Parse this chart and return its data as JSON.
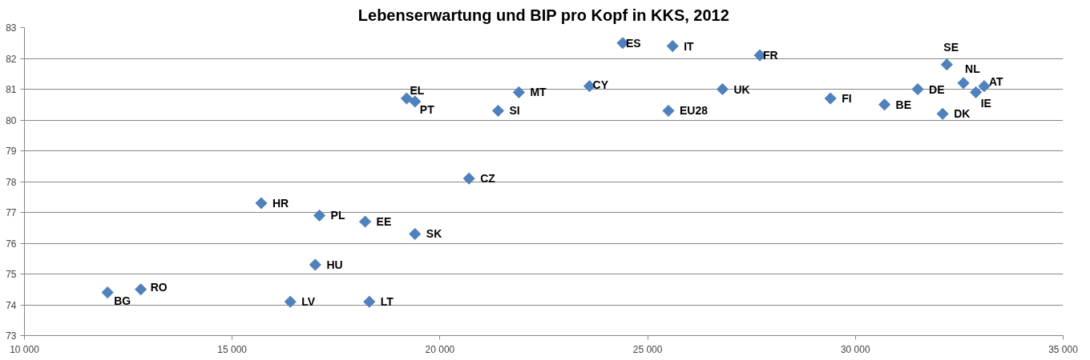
{
  "chart_data": {
    "type": "scatter",
    "title": "Lebenserwartung und BIP pro Kopf in KKS, 2012",
    "x": [
      12000,
      12800,
      15700,
      17100,
      18200,
      19400,
      17000,
      16400,
      18300,
      20700,
      19200,
      19400,
      21400,
      21900,
      24400,
      25600,
      27700,
      23600,
      26800,
      25500,
      29400,
      30700,
      31500,
      32200,
      32600,
      33100,
      32900,
      32100
    ],
    "series": [
      {
        "color": "#4f81bd",
        "values": [
          74.4,
          74.5,
          77.3,
          76.9,
          76.7,
          76.3,
          75.3,
          74.1,
          74.1,
          78.1,
          80.7,
          80.6,
          80.3,
          80.9,
          82.5,
          82.4,
          82.1,
          81.1,
          81.0,
          80.3,
          80.7,
          80.5,
          81.0,
          81.8,
          81.2,
          81.1,
          80.9,
          80.2
        ]
      }
    ],
    "annotations": [
      {
        "text": "BG",
        "x": 12000,
        "y": 74.4
      },
      {
        "text": "RO",
        "x": 12800,
        "y": 74.5
      },
      {
        "text": "HR",
        "x": 15700,
        "y": 77.3
      },
      {
        "text": "PL",
        "x": 17100,
        "y": 76.9
      },
      {
        "text": "EE",
        "x": 18200,
        "y": 76.7
      },
      {
        "text": "SK",
        "x": 19400,
        "y": 76.3
      },
      {
        "text": "HU",
        "x": 17000,
        "y": 75.3
      },
      {
        "text": "LV",
        "x": 16400,
        "y": 74.1
      },
      {
        "text": "LT",
        "x": 18300,
        "y": 74.1
      },
      {
        "text": "CZ",
        "x": 20700,
        "y": 78.1
      },
      {
        "text": "EL",
        "x": 19200,
        "y": 80.7
      },
      {
        "text": "PT",
        "x": 19400,
        "y": 80.6
      },
      {
        "text": "SI",
        "x": 21400,
        "y": 80.3
      },
      {
        "text": "MT",
        "x": 21900,
        "y": 80.9
      },
      {
        "text": "ES",
        "x": 24400,
        "y": 82.5
      },
      {
        "text": "IT",
        "x": 25600,
        "y": 82.4
      },
      {
        "text": "FR",
        "x": 27700,
        "y": 82.1
      },
      {
        "text": "CY",
        "x": 23600,
        "y": 81.1
      },
      {
        "text": "UK",
        "x": 26800,
        "y": 81.0
      },
      {
        "text": "EU28",
        "x": 25500,
        "y": 80.3
      },
      {
        "text": "FI",
        "x": 29400,
        "y": 80.7
      },
      {
        "text": "BE",
        "x": 30700,
        "y": 80.5
      },
      {
        "text": "DE",
        "x": 31500,
        "y": 81.0
      },
      {
        "text": "SE",
        "x": 32200,
        "y": 81.8
      },
      {
        "text": "NL",
        "x": 32600,
        "y": 81.2
      },
      {
        "text": "AT",
        "x": 33100,
        "y": 81.1
      },
      {
        "text": "IE",
        "x": 32900,
        "y": 80.9
      },
      {
        "text": "DK",
        "x": 32100,
        "y": 80.2
      }
    ],
    "xlim": [
      10000,
      35000
    ],
    "ylim": [
      73,
      83
    ],
    "xticks": [
      {
        "value": 10000,
        "label": "10 000"
      },
      {
        "value": 15000,
        "label": "15 000"
      },
      {
        "value": 20000,
        "label": "20 000"
      },
      {
        "value": 25000,
        "label": "25 000"
      },
      {
        "value": 30000,
        "label": "30 000"
      },
      {
        "value": 35000,
        "label": "35 000"
      }
    ],
    "yticks": [
      73,
      74,
      75,
      76,
      77,
      78,
      79,
      80,
      81,
      82,
      83
    ],
    "grid": "y",
    "marker": "diamond"
  }
}
